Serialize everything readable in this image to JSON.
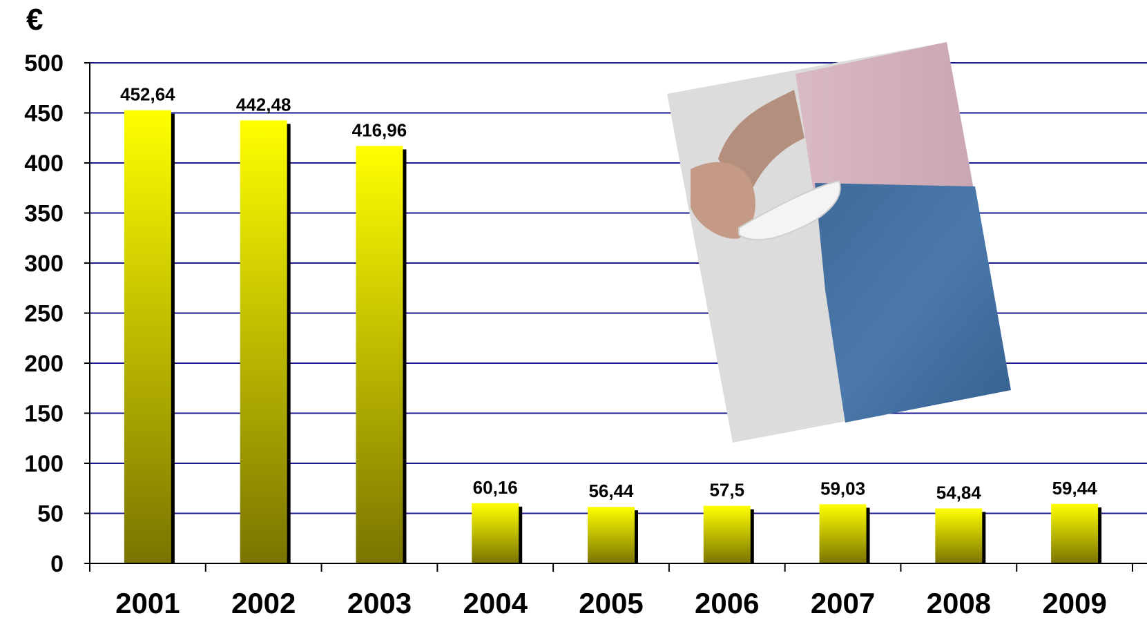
{
  "chart_data": {
    "type": "bar",
    "title": "",
    "xlabel": "",
    "ylabel": "€",
    "categories": [
      "2001",
      "2002",
      "2003",
      "2004",
      "2005",
      "2006",
      "2007",
      "2008",
      "2009"
    ],
    "values": [
      452.64,
      442.48,
      416.96,
      60.16,
      56.44,
      57.5,
      59.03,
      54.84,
      59.44
    ],
    "data_labels": [
      "452,64",
      "442,48",
      "416,96",
      "60,16",
      "56,44",
      "57,5",
      "59,03",
      "54,84",
      "59,44"
    ],
    "ylim": [
      0,
      500
    ],
    "y_ticks": [
      "0",
      "50",
      "100",
      "150",
      "200",
      "250",
      "300",
      "350",
      "400",
      "450",
      "500"
    ],
    "grid": true,
    "legend": "none",
    "colors": {
      "bar_top": "#ffff00",
      "bar_bottom": "#7a7400",
      "bar_shadow": "#000000",
      "gridline": "#1a1a8c",
      "axis": "#000000"
    },
    "inset_image": "photo-empty-pocket"
  }
}
